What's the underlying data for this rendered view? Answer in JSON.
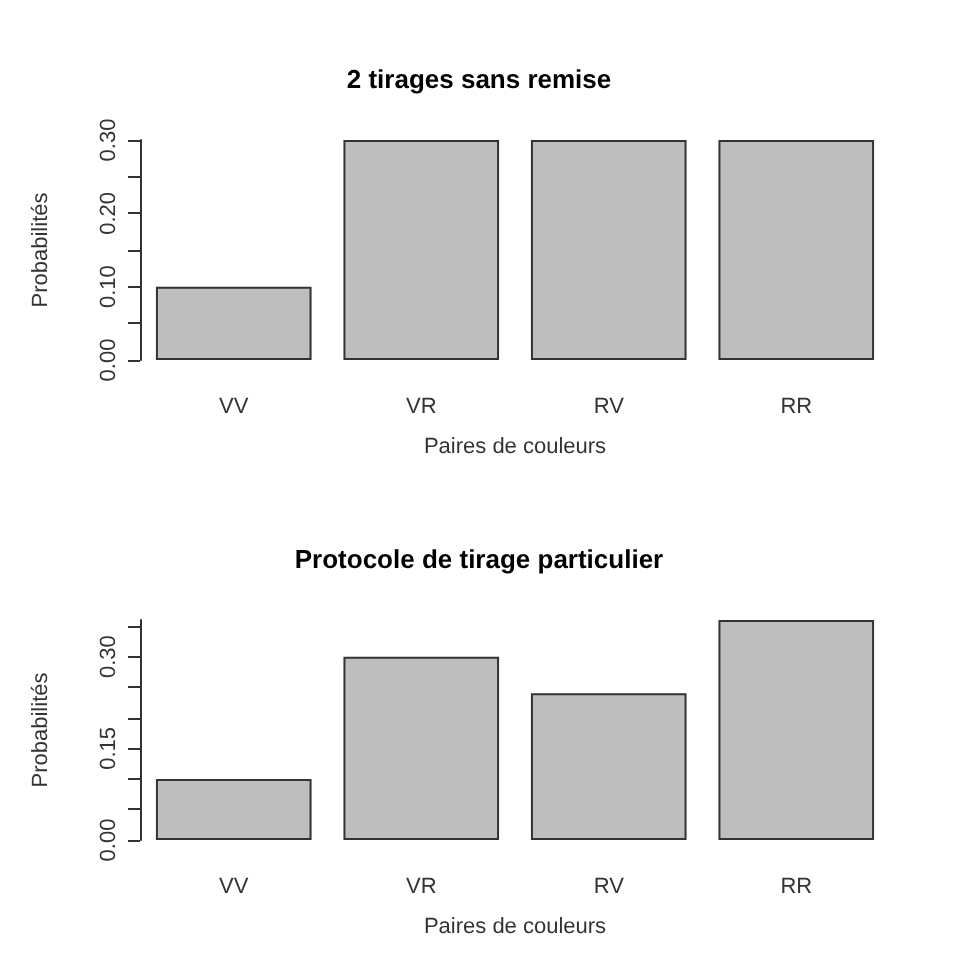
{
  "chart_data": [
    {
      "type": "bar",
      "title": "2 tirages sans remise",
      "xlabel": "Paires de couleurs",
      "ylabel": "Probabilités",
      "categories": [
        "VV",
        "VR",
        "RV",
        "RR"
      ],
      "values": [
        0.1,
        0.3,
        0.3,
        0.3
      ],
      "color": "#bebebe",
      "ylim": [
        0,
        0.3
      ],
      "yticks": [
        {
          "value": 0,
          "label": "0.00"
        },
        {
          "value": 0.05,
          "label": null
        },
        {
          "value": 0.1,
          "label": "0.10"
        },
        {
          "value": 0.15,
          "label": null
        },
        {
          "value": 0.2,
          "label": "0.20"
        },
        {
          "value": 0.25,
          "label": null
        },
        {
          "value": 0.3,
          "label": "0.30"
        }
      ],
      "grid": false
    },
    {
      "type": "bar",
      "title": "Protocole de tirage particulier",
      "xlabel": "Paires de couleurs",
      "ylabel": "Probabilités",
      "categories": [
        "VV",
        "VR",
        "RV",
        "RR"
      ],
      "values": [
        0.1,
        0.3,
        0.24,
        0.36
      ],
      "color": "#bebebe",
      "ylim": [
        0,
        0.36
      ],
      "yticks": [
        {
          "value": 0,
          "label": "0.00"
        },
        {
          "value": 0.05,
          "label": null
        },
        {
          "value": 0.1,
          "label": null
        },
        0.15,
        {
          "value": 0.2,
          "label": null
        },
        {
          "value": 0.25,
          "label": null
        },
        {
          "value": 0.3,
          "label": "0.30"
        },
        {
          "value": 0.35,
          "label": null
        }
      ],
      "grid": false
    }
  ]
}
